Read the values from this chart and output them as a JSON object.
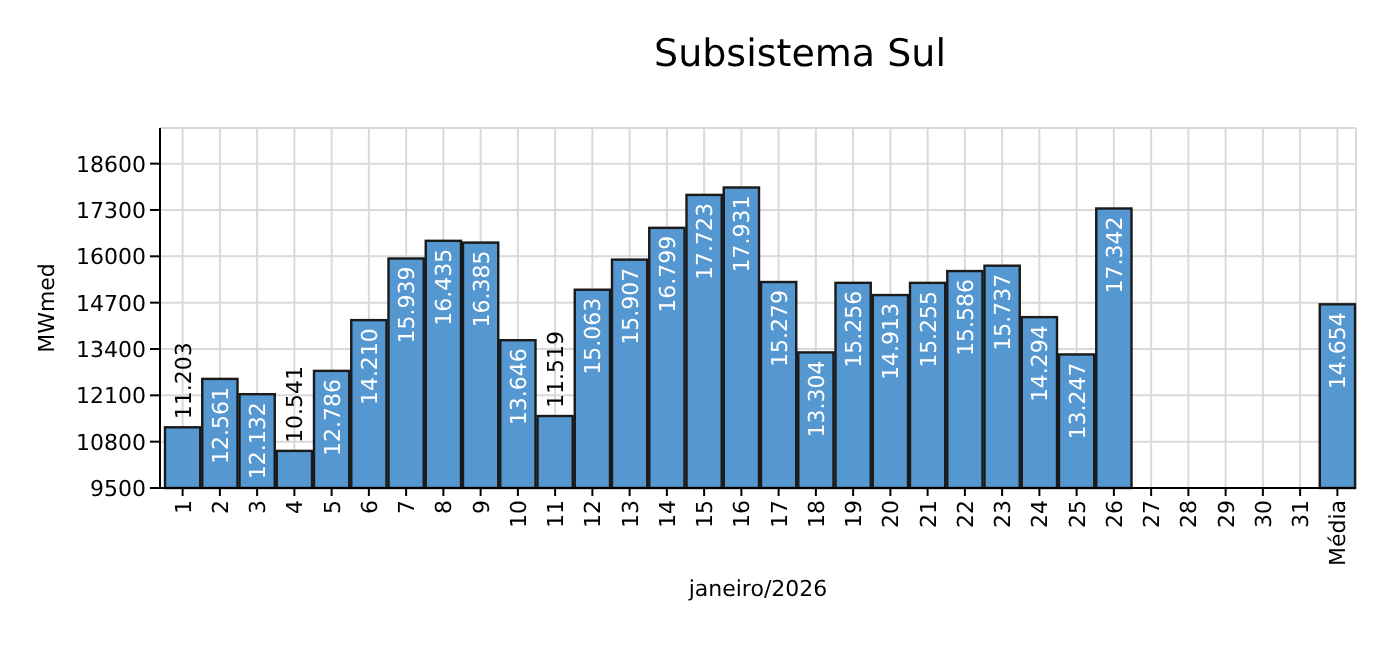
{
  "chart_data": {
    "type": "bar",
    "title": "Subsistema Sul",
    "xlabel": "janeiro/2026",
    "ylabel": "MWmed",
    "categories": [
      "1",
      "2",
      "3",
      "4",
      "5",
      "6",
      "7",
      "8",
      "9",
      "10",
      "11",
      "12",
      "13",
      "14",
      "15",
      "16",
      "17",
      "18",
      "19",
      "20",
      "21",
      "22",
      "23",
      "24",
      "25",
      "26",
      "27",
      "28",
      "29",
      "30",
      "31",
      "Média"
    ],
    "values": [
      11203,
      12561,
      12132,
      10541,
      12786,
      14210,
      15939,
      16435,
      16385,
      13646,
      11519,
      15063,
      15907,
      16799,
      17723,
      17931,
      15279,
      13304,
      15256,
      14913,
      15255,
      15586,
      15737,
      14294,
      13247,
      17342,
      null,
      null,
      null,
      null,
      null,
      14654
    ],
    "value_labels": [
      "11.203",
      "12.561",
      "12.132",
      "10.541",
      "12.786",
      "14.210",
      "15.939",
      "16.435",
      "16.385",
      "13.646",
      "11.519",
      "15.063",
      "15.907",
      "16.799",
      "17.723",
      "17.931",
      "15.279",
      "13.304",
      "15.256",
      "14.913",
      "15.255",
      "15.586",
      "15.737",
      "14.294",
      "13.247",
      "17.342",
      null,
      null,
      null,
      null,
      null,
      "14.654"
    ],
    "color": "#5597d0",
    "ylim": [
      9500,
      19600
    ],
    "yticks": [
      9500,
      10800,
      12100,
      13400,
      14700,
      16000,
      17300,
      18600
    ],
    "grid": true
  }
}
